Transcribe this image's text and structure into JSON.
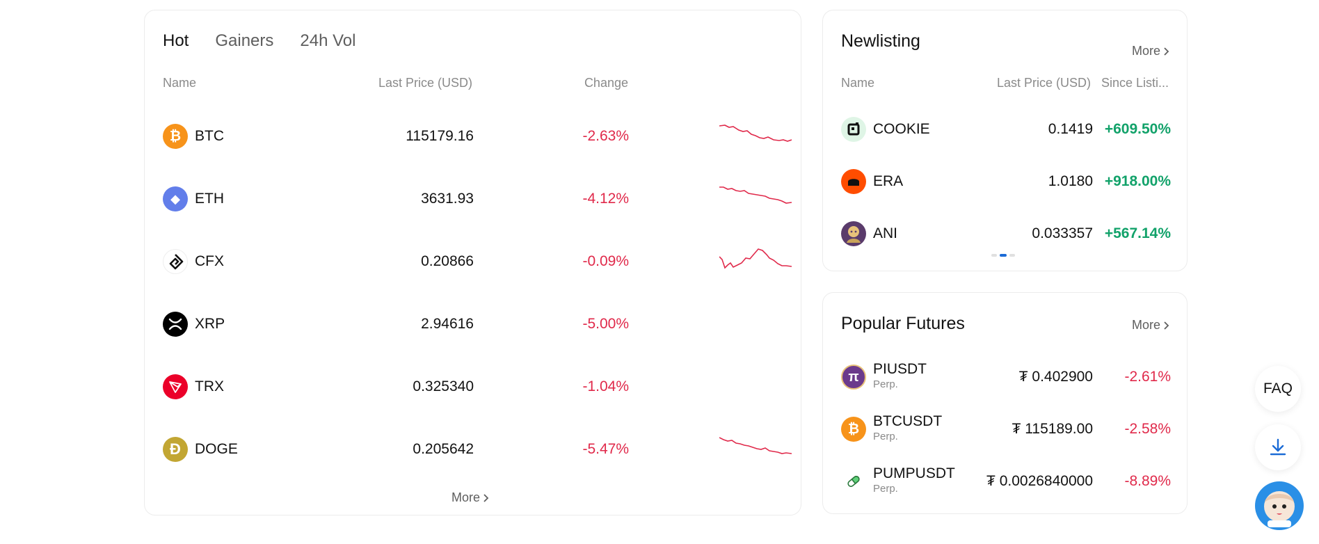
{
  "market": {
    "tabs": [
      "Hot",
      "Gainers",
      "24h Vol"
    ],
    "headers": {
      "name": "Name",
      "price": "Last Price (USD)",
      "change": "Change"
    },
    "rows": [
      {
        "symbol": "BTC",
        "price": "115179.16",
        "change": "-2.63%",
        "icon": "bitcoin-icon",
        "color": "#f7931a",
        "glyph": "₿"
      },
      {
        "symbol": "ETH",
        "price": "3631.93",
        "change": "-4.12%",
        "icon": "ethereum-icon",
        "color": "#627eea",
        "glyph": "◆"
      },
      {
        "symbol": "CFX",
        "price": "0.20866",
        "change": "-0.09%",
        "icon": "conflux-icon",
        "color": "#ffffff",
        "glyph": ""
      },
      {
        "symbol": "XRP",
        "price": "2.94616",
        "change": "-5.00%",
        "icon": "xrp-icon",
        "color": "#000000",
        "glyph": "✕"
      },
      {
        "symbol": "TRX",
        "price": "0.325340",
        "change": "-1.04%",
        "icon": "tron-icon",
        "color": "#eb0029",
        "glyph": "▽"
      },
      {
        "symbol": "DOGE",
        "price": "0.205642",
        "change": "-5.47%",
        "icon": "dogecoin-icon",
        "color": "#c2a633",
        "glyph": "Ð"
      }
    ],
    "more": "More"
  },
  "newlisting": {
    "title": "Newlisting",
    "more": "More",
    "headers": {
      "name": "Name",
      "price": "Last Price (USD)",
      "since": "Since Listi..."
    },
    "rows": [
      {
        "symbol": "COOKIE",
        "price": "0.1419",
        "pct": "+609.50%",
        "icon": "cookie-icon",
        "color": "#dff5e6"
      },
      {
        "symbol": "ERA",
        "price": "1.0180",
        "pct": "+918.00%",
        "icon": "era-icon",
        "color": "#ff4d00"
      },
      {
        "symbol": "ANI",
        "price": "0.033357",
        "pct": "+567.14%",
        "icon": "ani-icon",
        "color": "#5a3b6b"
      }
    ]
  },
  "futures": {
    "title": "Popular Futures",
    "more": "More",
    "rows": [
      {
        "symbol": "PIUSDT",
        "sub": "Perp.",
        "price": "₮ 0.402900",
        "pct": "-2.61%",
        "icon": "pi-icon",
        "color": "#6b3a8c"
      },
      {
        "symbol": "BTCUSDT",
        "sub": "Perp.",
        "price": "₮ 115189.00",
        "pct": "-2.58%",
        "icon": "bitcoin-icon",
        "color": "#f7931a"
      },
      {
        "symbol": "PUMPUSDT",
        "sub": "Perp.",
        "price": "₮ 0.0026840000",
        "pct": "-8.89%",
        "icon": "pill-icon",
        "color": "#ffffff"
      }
    ]
  },
  "floating": {
    "faq": "FAQ"
  }
}
